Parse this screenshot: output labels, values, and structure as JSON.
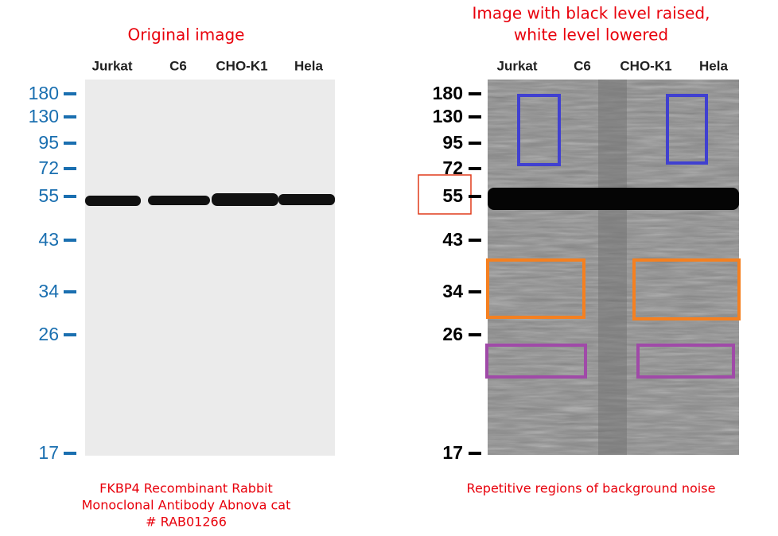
{
  "left_panel": {
    "title": "Original image",
    "lanes": [
      "Jurkat",
      "C6",
      "CHO-K1",
      "Hela"
    ],
    "markers": [
      "180",
      "130",
      "95",
      "72",
      "55",
      "43",
      "34",
      "26",
      "17"
    ],
    "caption": [
      "FKBP4 Recombinant Rabbit",
      "Monoclonal Antibody Abnova cat",
      "# RAB01266"
    ]
  },
  "right_panel": {
    "title": [
      "Image with black level raised,",
      "white level lowered"
    ],
    "lanes": [
      "Jurkat",
      "C6",
      "CHO-K1",
      "Hela"
    ],
    "markers": [
      "180",
      "130",
      "95",
      "72",
      "55",
      "43",
      "34",
      "26",
      "17"
    ],
    "caption": "Repetitive regions of background noise"
  }
}
